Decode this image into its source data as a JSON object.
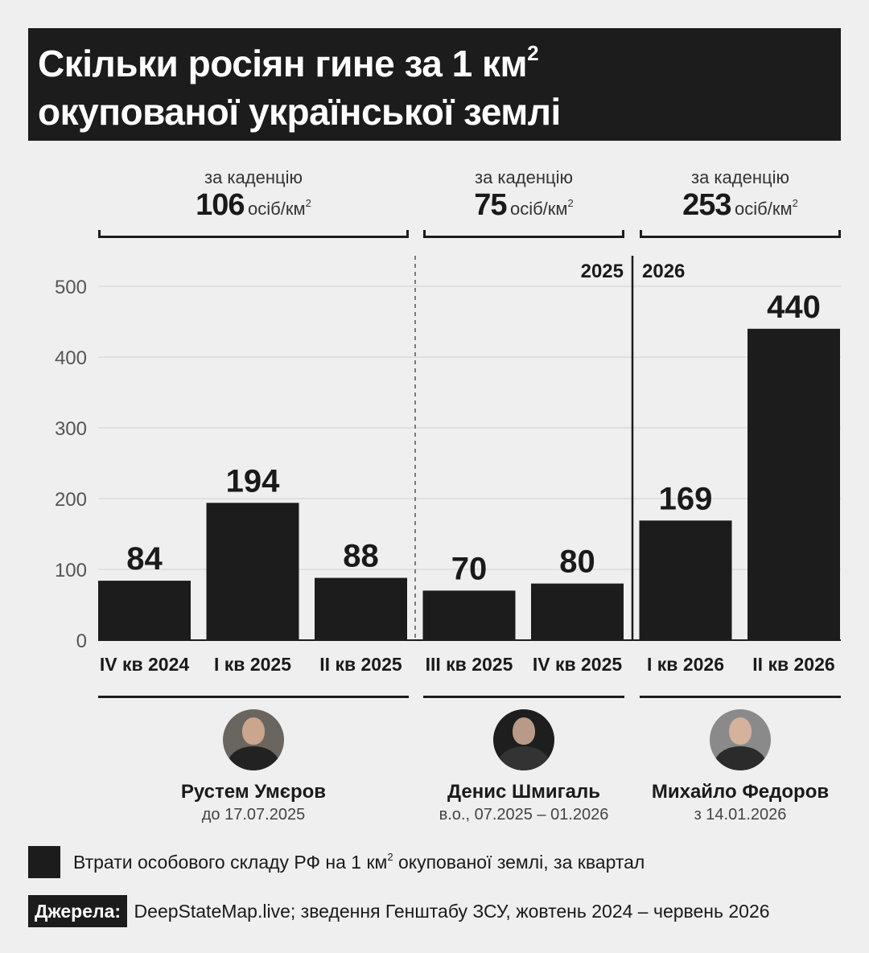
{
  "title": {
    "line1": "Скільки росіян гине за 1 км",
    "line1_sup": "2",
    "line2": "окупованої української землі"
  },
  "tenures": [
    {
      "caption": "за каденцію",
      "value": "106",
      "unit": "осіб/км",
      "unit_sup": "2"
    },
    {
      "caption": "за каденцію",
      "value": "75",
      "unit": "осіб/км",
      "unit_sup": "2"
    },
    {
      "caption": "за каденцію",
      "value": "253",
      "unit": "осіб/км",
      "unit_sup": "2"
    }
  ],
  "year_labels": {
    "left": "2025",
    "right": "2026"
  },
  "chart_data": {
    "type": "bar",
    "categories": [
      "IV кв 2024",
      "I кв 2025",
      "II кв 2025",
      "III кв 2025",
      "IV кв 2025",
      "I кв 2026",
      "II кв 2026"
    ],
    "values": [
      84,
      194,
      88,
      70,
      80,
      169,
      440
    ],
    "data_labels": [
      "84",
      "194",
      "88",
      "70",
      "80",
      "169",
      "440"
    ],
    "title": "Скільки росіян гине за 1 км² окупованої української землі",
    "xlabel": "",
    "ylabel": "",
    "ylim": [
      0,
      550
    ],
    "yticks": [
      0,
      100,
      200,
      300,
      400,
      500
    ],
    "grid": true,
    "legend_position": "bottom-left",
    "bar_color": "#1c1c1c"
  },
  "people": [
    {
      "name": "Рустем Умєров",
      "term": "до 17.07.2025",
      "avatar": "portrait-icon"
    },
    {
      "name": "Денис Шмигаль",
      "term": "в.о., 07.2025 – 01.2026",
      "avatar": "portrait-icon"
    },
    {
      "name": "Михайло Федоров",
      "term": "з 14.01.2026",
      "avatar": "portrait-icon"
    }
  ],
  "legend": {
    "text": "Втрати особового складу РФ на 1 км",
    "sup": "2",
    "text_after": " окупованої землі, за квартал"
  },
  "sources": {
    "label": "Джерела:",
    "text": "DeepStateMap.live; зведення Генштабу ЗСУ, жовтень 2024 – червень 2026"
  },
  "colors": {
    "dark": "#1c1c1c",
    "background": "#efefef",
    "grid": "#d6d6d6"
  }
}
